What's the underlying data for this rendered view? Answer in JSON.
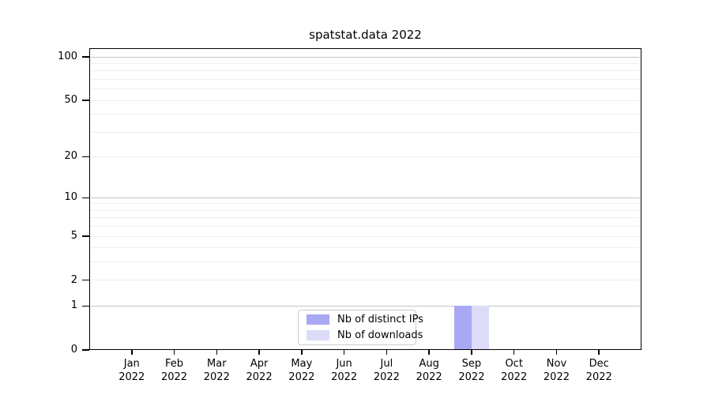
{
  "chart_data": {
    "type": "bar",
    "title": "spatstat.data 2022",
    "categories": [
      "Jan",
      "Feb",
      "Mar",
      "Apr",
      "May",
      "Jun",
      "Jul",
      "Aug",
      "Sep",
      "Oct",
      "Nov",
      "Dec"
    ],
    "x_tick_year": "2022",
    "series": [
      {
        "name": "Nb of distinct IPs",
        "color": "#a8a8f4",
        "values": [
          0,
          0,
          0,
          0,
          0,
          0,
          0,
          0,
          1,
          0,
          0,
          0
        ]
      },
      {
        "name": "Nb of downloads",
        "color": "#dcdcf9",
        "values": [
          0,
          0,
          0,
          0,
          0,
          0,
          0,
          0,
          1,
          0,
          0,
          0
        ]
      }
    ],
    "yscale": "log1p",
    "ylim": [
      0,
      115
    ],
    "yticks": [
      0,
      1,
      2,
      5,
      10,
      20,
      50,
      100
    ],
    "grid": {
      "orientation": "horizontal",
      "major_values": [
        1,
        10,
        100
      ],
      "minor_values": [
        2,
        3,
        4,
        5,
        6,
        7,
        8,
        9,
        20,
        30,
        40,
        50,
        60,
        70,
        80,
        90
      ],
      "major_color": "#c6c6c6",
      "minor_color": "#ededed"
    },
    "legend": {
      "position": "bottom-center",
      "entries": [
        "Nb of distinct IPs",
        "Nb of downloads"
      ]
    },
    "axis_color": "#000000",
    "background_color": "#ffffff"
  }
}
